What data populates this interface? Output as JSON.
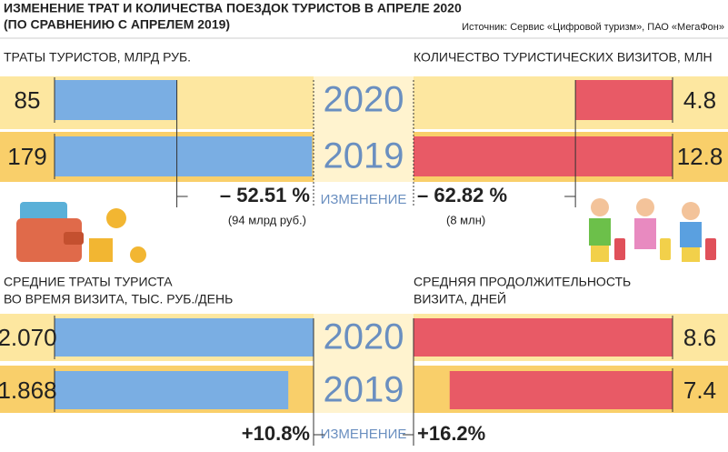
{
  "title": "ИЗМЕНЕНИЕ ТРАТ И КОЛИЧЕСТВА ПОЕЗДОК ТУРИСТОВ В АПРЕЛЕ 2020",
  "subtitle": "(ПО СРАВНЕНИЮ С АПРЕЛЕМ 2019)",
  "source": "Источник: Сервис «Цифровой туризм», ПАО «МегаФон»",
  "years": [
    "2020",
    "2019"
  ],
  "change_label": "ИЗМЕНЕНИЕ",
  "chart_data": [
    {
      "type": "bar",
      "title": "ТРАТЫ ТУРИСТОВ, МЛРД РУБ.",
      "values": [
        85,
        179
      ],
      "color": "#7aaee3",
      "xlim": [
        0,
        180
      ],
      "change": "– 52.51 %",
      "change_note": "(94 млрд руб.)"
    },
    {
      "type": "bar",
      "title": "КОЛИЧЕСТВО ТУРИСТИЧЕСКИХ ВИЗИТОВ, МЛН",
      "values": [
        4.8,
        12.8
      ],
      "color": "#e85a66",
      "xlim": [
        0,
        12.8
      ],
      "change": "– 62.82 %",
      "change_note": "(8 млн)"
    },
    {
      "type": "bar",
      "title": [
        "СРЕДНИЕ ТРАТЫ ТУРИСТА",
        "ВО ВРЕМЯ ВИЗИТА, ТЫС. РУБ./ДЕНЬ"
      ],
      "values": [
        2.07,
        1.868
      ],
      "value_labels": [
        "2.070",
        "1.868"
      ],
      "color": "#7aaee3",
      "xlim": [
        0,
        2.07
      ],
      "change": "+10.8%"
    },
    {
      "type": "bar",
      "title": [
        "СРЕДНЯЯ ПРОДОЛЖИТЕЛЬНОСТЬ",
        "ВИЗИТА, ДНЕЙ"
      ],
      "values": [
        8.6,
        7.4
      ],
      "color": "#e85a66",
      "xlim": [
        0,
        8.6
      ],
      "change": "+16.2%"
    }
  ]
}
